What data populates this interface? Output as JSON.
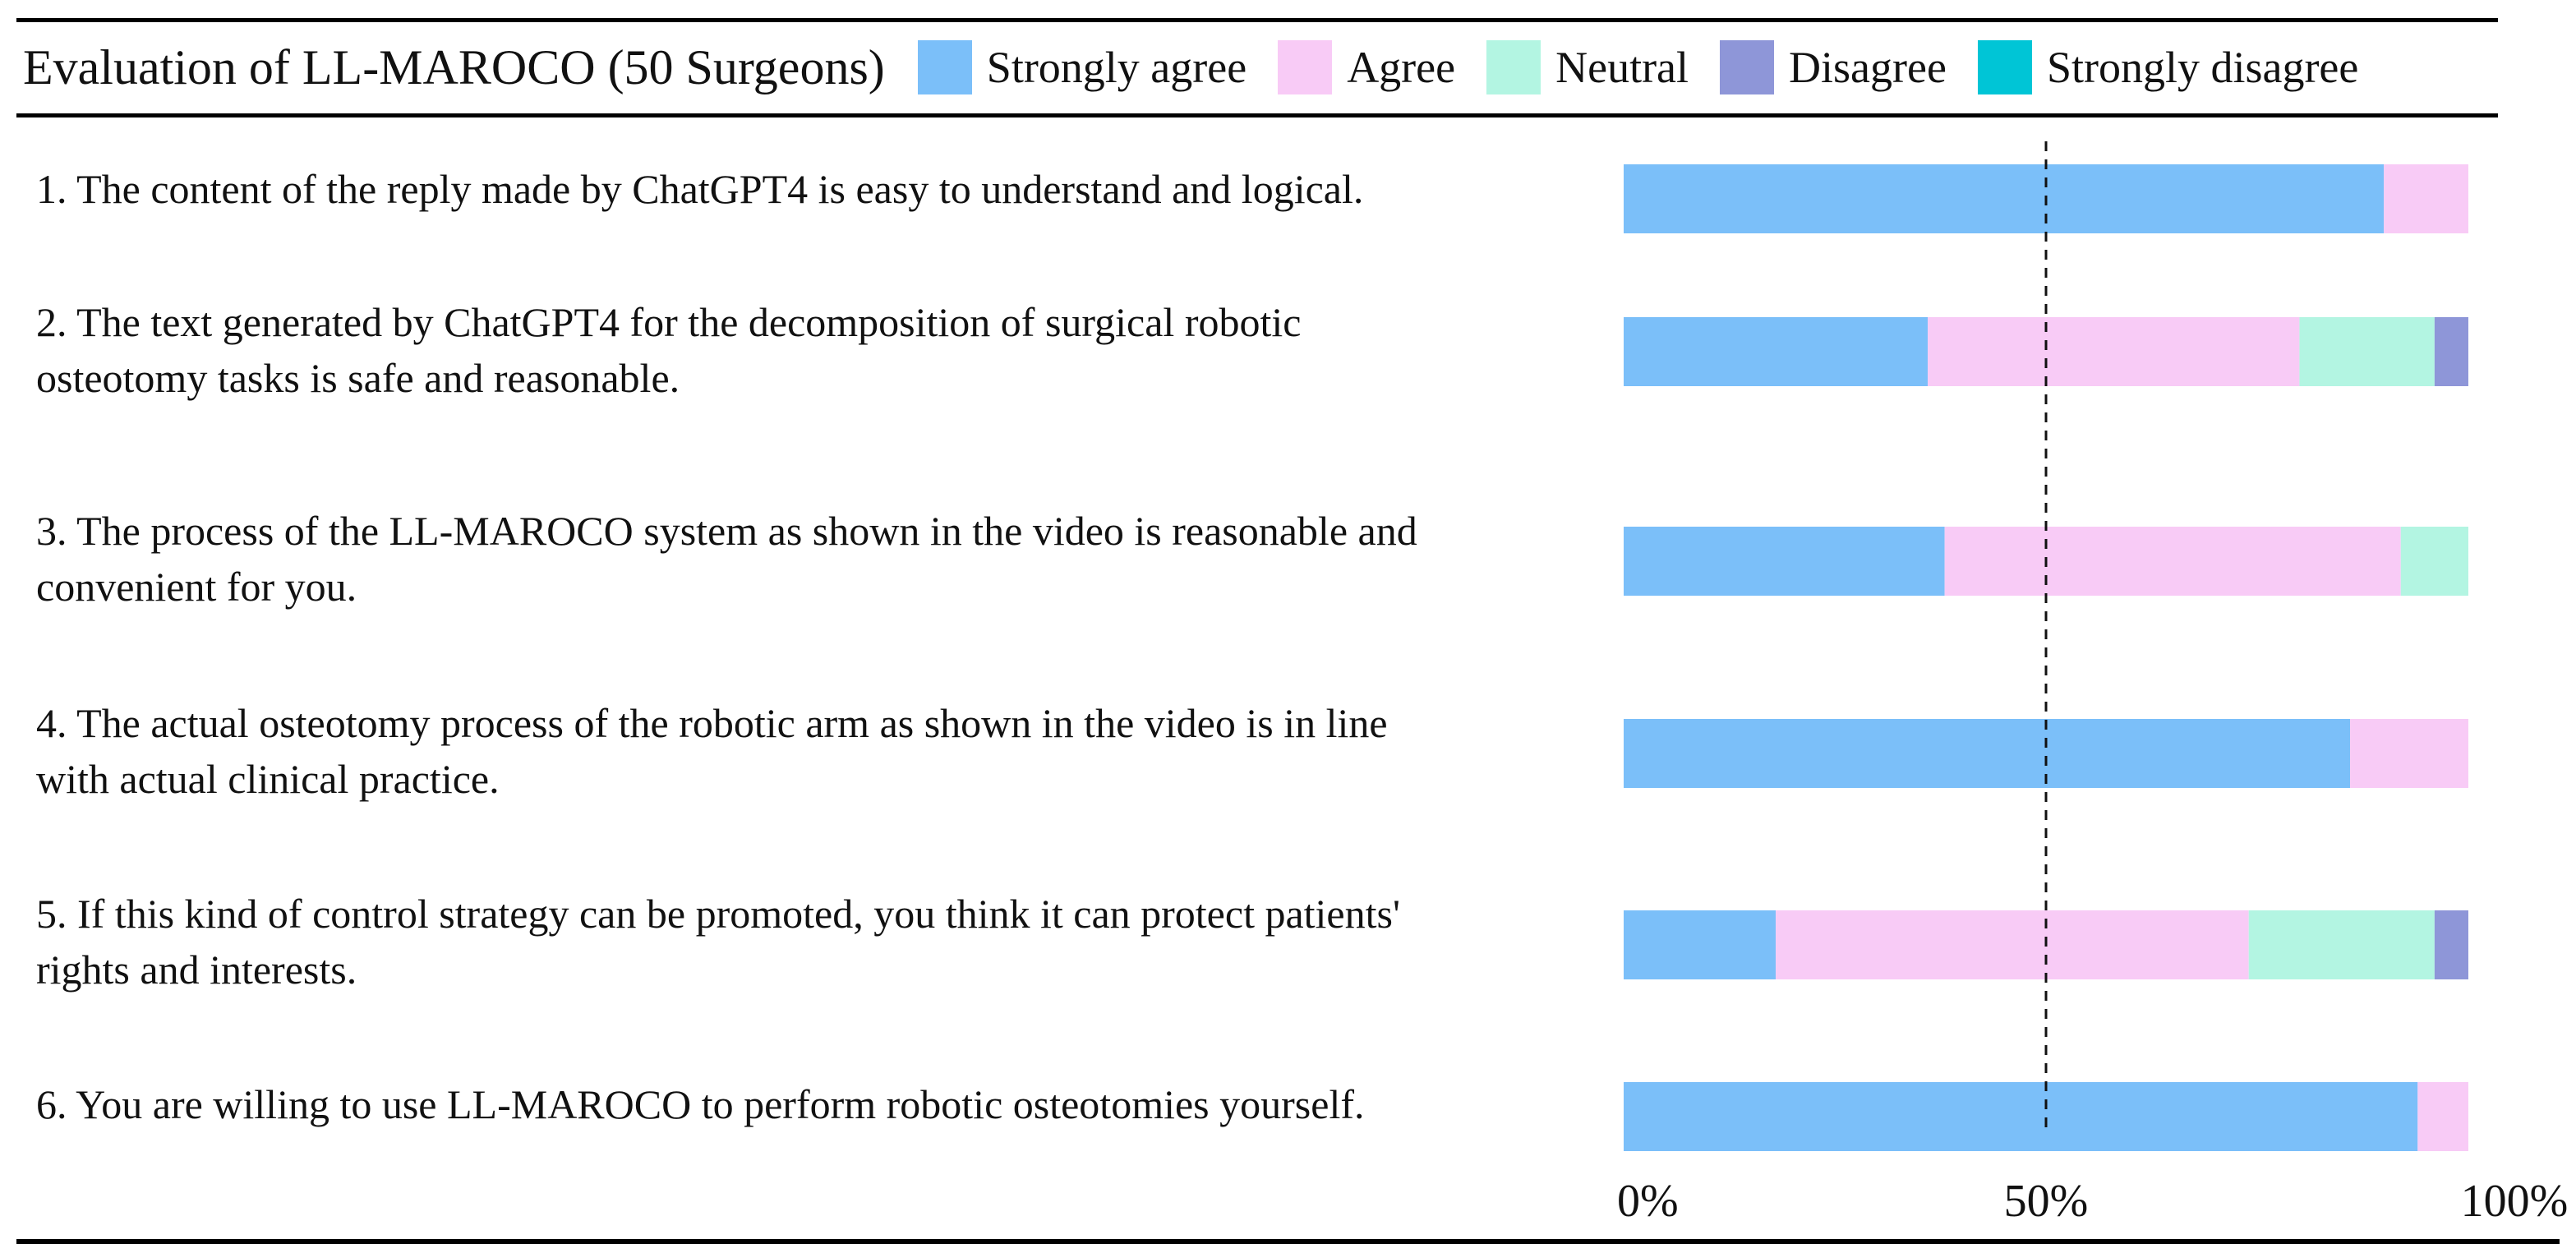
{
  "chart_data": {
    "type": "bar",
    "orientation": "horizontal",
    "stacked": true,
    "title": "Evaluation of LL-MAROCO (50 Surgeons)",
    "legend_position": "top",
    "series": [
      {
        "name": "Strongly agree",
        "color": "#7bbff9",
        "values": [
          90,
          36,
          38,
          86,
          18,
          94
        ]
      },
      {
        "name": "Agree",
        "color": "#f8cbf6",
        "values": [
          10,
          44,
          54,
          14,
          56,
          6
        ]
      },
      {
        "name": "Neutral",
        "color": "#b3f5e2",
        "values": [
          0,
          16,
          8,
          0,
          22,
          0
        ]
      },
      {
        "name": "Disagree",
        "color": "#8e96d8",
        "values": [
          0,
          4,
          0,
          0,
          4,
          0
        ]
      },
      {
        "name": "Strongly disagree",
        "color": "#00c5d6",
        "values": [
          0,
          0,
          0,
          0,
          0,
          0
        ]
      }
    ],
    "categories": [
      "1. The content of the reply made by ChatGPT4 is easy to understand and logical.",
      "2. The text generated by ChatGPT4 for the decomposition of surgical robotic osteotomy tasks is safe and reasonable.",
      "3. The process of the LL-MAROCO system as shown in the video is reasonable and convenient for you.",
      "4. The actual osteotomy process of the robotic arm as shown in the video is in line with actual clinical practice.",
      "5. If this kind of control strategy can be promoted, you think it can protect patients' rights and interests.",
      "6. You are willing to use LL-MAROCO to perform robotic osteotomies yourself."
    ],
    "category_lines": [
      [
        "1. The content of the reply made by ChatGPT4 is easy to understand and logical."
      ],
      [
        "2. The text generated by ChatGPT4 for the decomposition of surgical robotic",
        "osteotomy tasks is safe and reasonable."
      ],
      [
        "3. The process of the LL-MAROCO system as shown in the video is reasonable and",
        "convenient for you."
      ],
      [
        "4. The actual osteotomy process of the robotic arm as shown in the video is in line",
        "with actual clinical practice."
      ],
      [
        "5. If this kind of control strategy can be promoted, you think it can protect patients'",
        "rights and interests."
      ],
      [
        "6. You are willing to use LL-MAROCO to perform robotic osteotomies yourself."
      ]
    ],
    "xlim": [
      0,
      100
    ],
    "x_ticks": [
      0,
      50,
      100
    ],
    "x_tick_labels": [
      "0%",
      "50%",
      "100%"
    ],
    "reference_line": 50,
    "xlabel": "",
    "ylabel": ""
  }
}
